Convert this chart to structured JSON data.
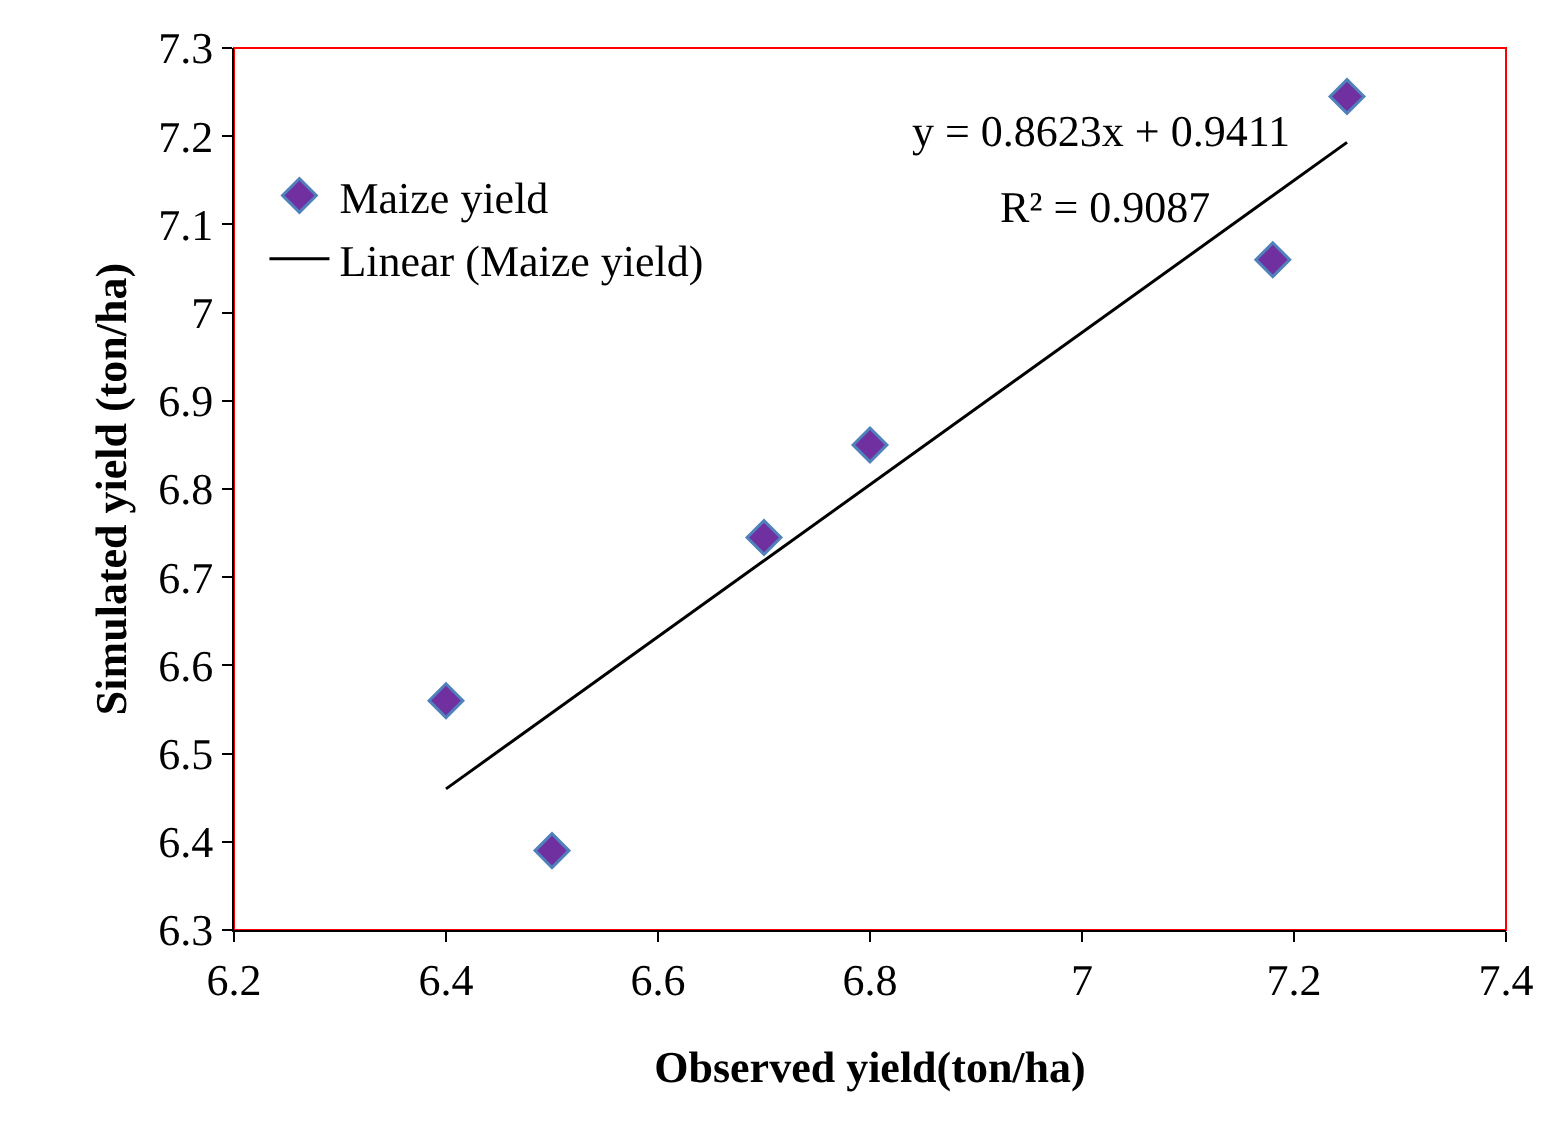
{
  "chart_data": {
    "type": "scatter",
    "xlabel": "Observed yield(ton/ha)",
    "ylabel": "Simulated yield (ton/ha)",
    "xlim": [
      6.2,
      7.4
    ],
    "xticks": [
      6.2,
      6.4,
      6.6,
      6.8,
      7,
      7.2,
      7.4
    ],
    "ylim": [
      6.3,
      7.3
    ],
    "yticks": [
      6.3,
      6.4,
      6.5,
      6.6,
      6.7,
      6.8,
      6.9,
      7,
      7.1,
      7.2,
      7.3
    ],
    "grid": false,
    "legend": "top left",
    "line_style": "solid",
    "annotations": [
      "y = 0.8623x + 0.9411",
      "R² = 0.9087"
    ],
    "series": [
      {
        "name": "Maize yield",
        "marker": "diamond",
        "color": "#7030a0",
        "x": [
          6.4,
          6.5,
          6.7,
          6.8,
          7.18,
          7.25
        ],
        "values": [
          6.56,
          6.39,
          6.745,
          6.85,
          7.06,
          7.245
        ]
      },
      {
        "name": "Linear (Maize yield)",
        "type": "line",
        "marker": "none",
        "color": "#000000",
        "x": [
          6.4,
          7.25
        ],
        "values": [
          6.46,
          7.193
        ]
      }
    ]
  }
}
